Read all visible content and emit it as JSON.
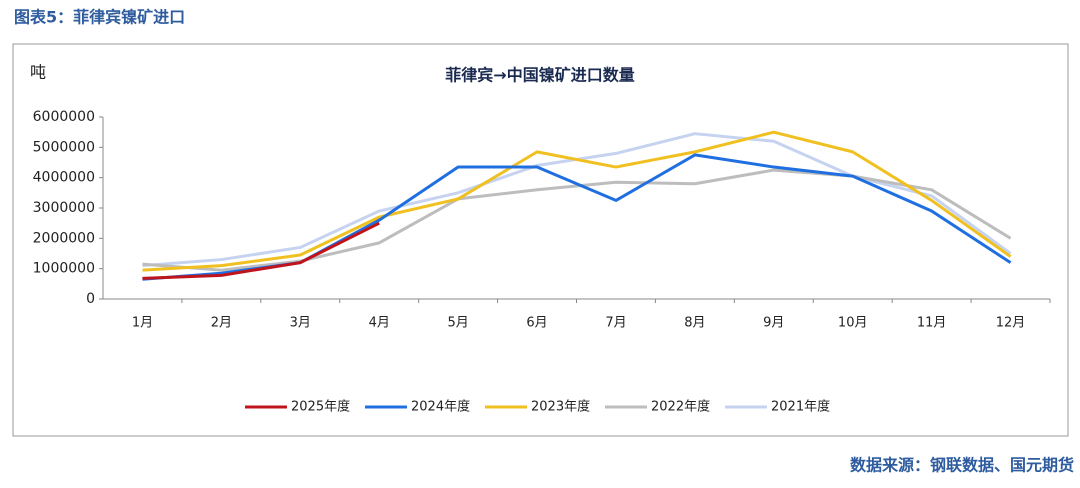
{
  "header": {
    "title": "图表5：菲律宾镍矿进口",
    "source": "数据来源：钢联数据、国元期货"
  },
  "chart_data": {
    "type": "line",
    "title": "菲律宾→中国镍矿进口数量",
    "y_label": "吨",
    "categories": [
      "1月",
      "2月",
      "3月",
      "4月",
      "5月",
      "6月",
      "7月",
      "8月",
      "9月",
      "10月",
      "11月",
      "12月"
    ],
    "series": [
      {
        "name": "2025年度",
        "color": "#c0141c",
        "values": [
          680000,
          780000,
          1200000,
          2500000,
          null,
          null,
          null,
          null,
          null,
          null,
          null,
          null
        ]
      },
      {
        "name": "2024年度",
        "color": "#1f6fe0",
        "values": [
          650000,
          850000,
          1200000,
          2600000,
          4350000,
          4350000,
          3250000,
          4750000,
          4350000,
          4050000,
          2900000,
          1200000
        ]
      },
      {
        "name": "2023年度",
        "color": "#f0c020",
        "values": [
          950000,
          1100000,
          1450000,
          2700000,
          3300000,
          4850000,
          4350000,
          4850000,
          5500000,
          4850000,
          3250000,
          1400000
        ]
      },
      {
        "name": "2022年度",
        "color": "#bdbdbd",
        "values": [
          1150000,
          950000,
          1250000,
          1850000,
          3300000,
          3600000,
          3850000,
          3800000,
          4250000,
          4050000,
          3600000,
          2000000
        ]
      },
      {
        "name": "2021年度",
        "color": "#c5d3f0",
        "values": [
          1100000,
          1300000,
          1700000,
          2900000,
          3500000,
          4400000,
          4800000,
          5450000,
          5200000,
          4050000,
          3400000,
          1500000
        ]
      }
    ],
    "ylim": [
      0,
      6000000
    ],
    "yticks": [
      0,
      1000000,
      2000000,
      3000000,
      4000000,
      5000000,
      6000000
    ],
    "legend": "bottom"
  }
}
